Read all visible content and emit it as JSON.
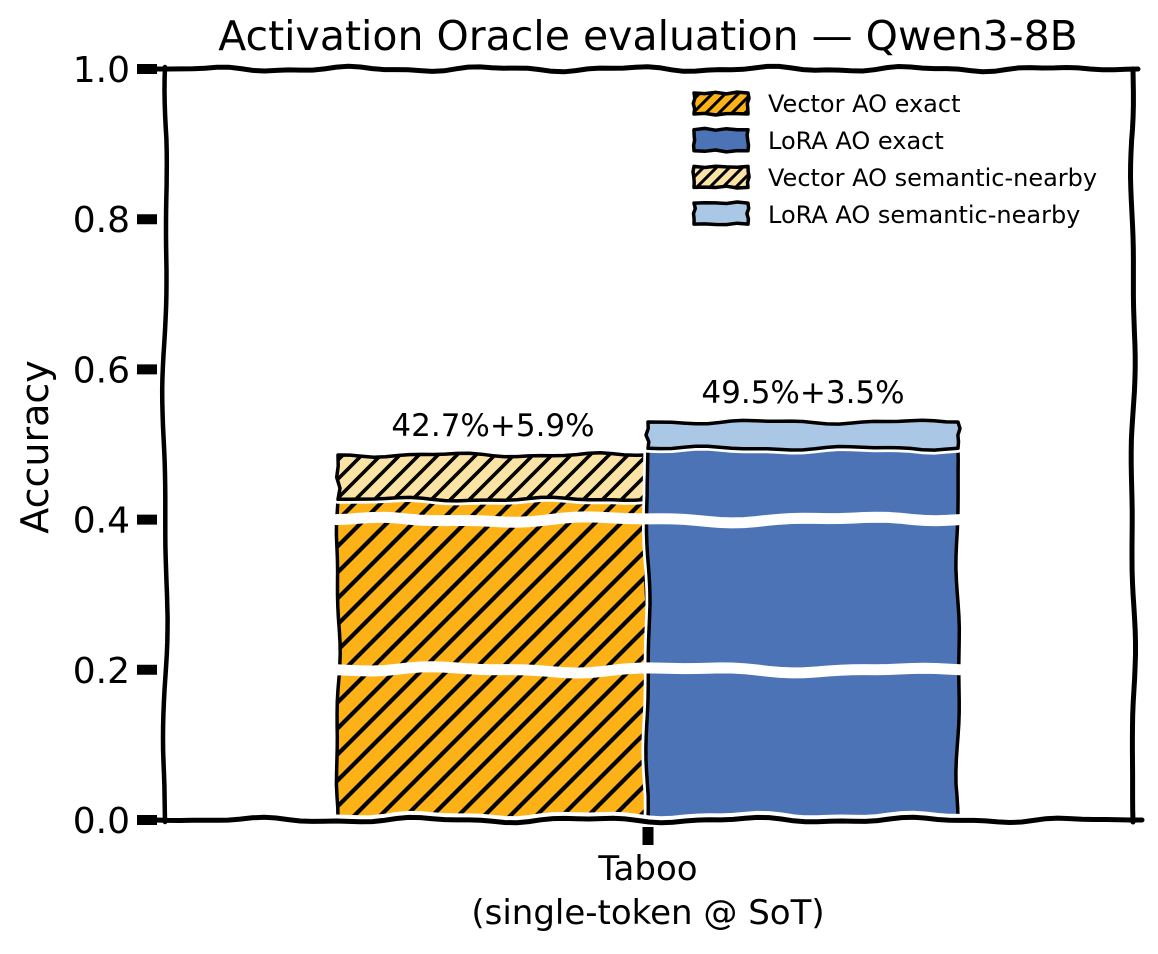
{
  "chart_data": {
    "type": "bar",
    "style": "xkcd-sketch",
    "title": "Activation Oracle evaluation — Qwen3-8B",
    "ylabel": "Accuracy",
    "xlabel": "",
    "ylim": [
      0.0,
      1.0
    ],
    "yticks": [
      0.0,
      0.2,
      0.4,
      0.6,
      0.8,
      1.0
    ],
    "categories": [
      {
        "label": "Taboo\n(single-token @ SoT)"
      }
    ],
    "series": [
      {
        "name": "Vector AO exact",
        "values": [
          0.427
        ],
        "color": "#fcb216",
        "hatch": "/"
      },
      {
        "name": "Vector AO semantic-nearby",
        "values": [
          0.059
        ],
        "color": "#fae3a5",
        "hatch": "/"
      },
      {
        "name": "LoRA AO exact",
        "values": [
          0.495
        ],
        "color": "#4c73b5",
        "hatch": null
      },
      {
        "name": "LoRA AO semantic-nearby",
        "values": [
          0.035
        ],
        "color": "#abc7e6",
        "hatch": null
      }
    ],
    "stacks": [
      {
        "name": "Vector AO",
        "series": [
          0,
          1
        ]
      },
      {
        "name": "LoRA AO",
        "series": [
          2,
          3
        ]
      }
    ],
    "annotations": [
      {
        "text": "42.7%+5.9%",
        "stack": 0
      },
      {
        "text": "49.5%+3.5%",
        "stack": 1
      }
    ],
    "legend": {
      "position": "upper right",
      "entries": [
        {
          "label": "Vector AO exact",
          "series": 0
        },
        {
          "label": "LoRA AO exact",
          "series": 2
        },
        {
          "label": "Vector AO semantic-nearby",
          "series": 1
        },
        {
          "label": "LoRA AO semantic-nearby",
          "series": 3
        }
      ]
    },
    "grid": false,
    "overlay_white_lines_at": [
      0.2,
      0.4
    ],
    "axis_color": "#000000",
    "background": "#ffffff"
  }
}
